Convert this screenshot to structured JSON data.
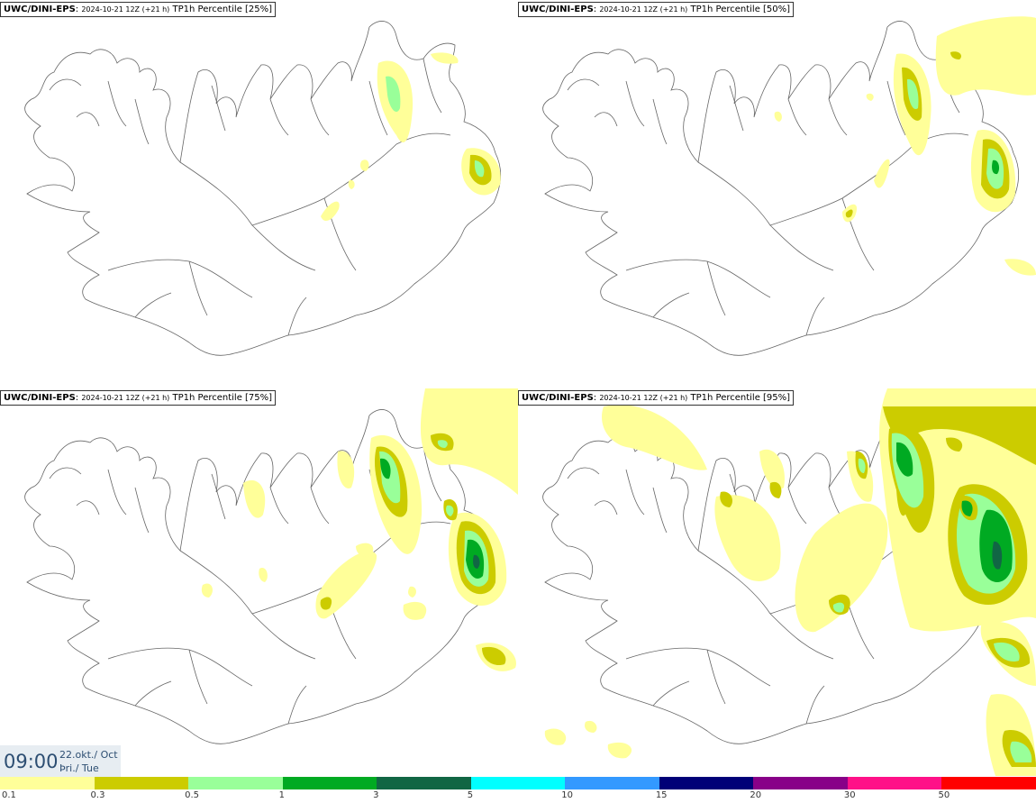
{
  "panels": [
    {
      "model": "UWC/DINI-EPS",
      "run": "2024-10-21 12Z (+21 h)",
      "label": "TP1h Percentile [25%]"
    },
    {
      "model": "UWC/DINI-EPS",
      "run": "2024-10-21 12Z (+21 h)",
      "label": "TP1h Percentile [50%]"
    },
    {
      "model": "UWC/DINI-EPS",
      "run": "2024-10-21 12Z (+21 h)",
      "label": "TP1h Percentile [75%]"
    },
    {
      "model": "UWC/DINI-EPS",
      "run": "2024-10-21 12Z (+21 h)",
      "label": "TP1h Percentile [95%]"
    }
  ],
  "time": {
    "clock": "09:00",
    "date": "22.okt./ Oct",
    "weekday": "Þri./ Tue"
  },
  "legend": {
    "labels": [
      "0.1",
      "0.3",
      "0.5",
      "1",
      "3",
      "5",
      "10",
      "15",
      "20",
      "30",
      "50"
    ],
    "colors": [
      "#ffff99",
      "#cccc00",
      "#99ff99",
      "#00aa22",
      "#116644",
      "#00ffff",
      "#3399ff",
      "#000077",
      "#880088",
      "#ff1188",
      "#ff0000"
    ]
  }
}
